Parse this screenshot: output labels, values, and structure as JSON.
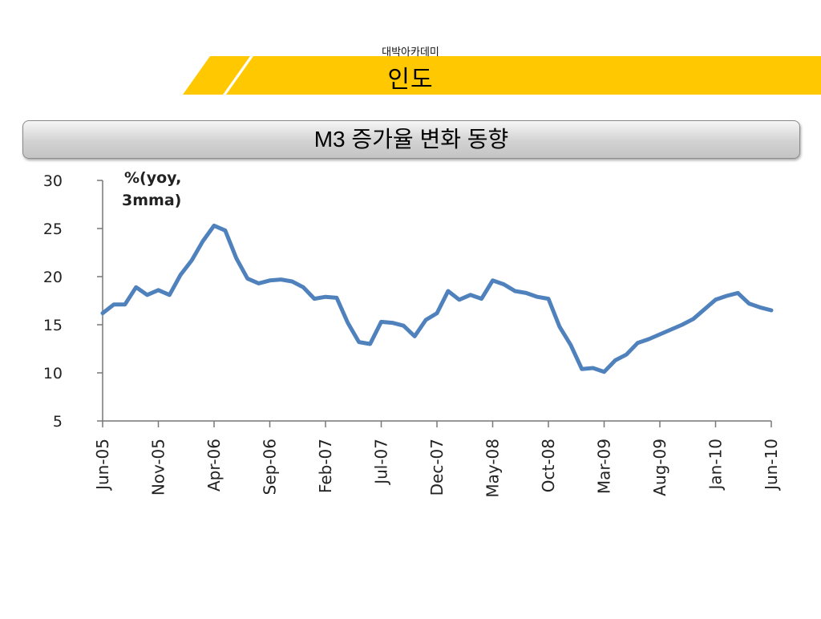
{
  "header": {
    "subtitle": "대박아카데미",
    "title": "인도"
  },
  "chart_header": {
    "title": "M3 증가율 변화 동향"
  },
  "colors": {
    "banner": "#FFC800",
    "line": "#4F81BD"
  },
  "chart_data": {
    "type": "line",
    "title": "M3 증가율 변화 동향",
    "unit_line1": "%(yoy,",
    "unit_line2": "3mma)",
    "ylim": [
      5,
      30
    ],
    "yticks": [
      5,
      10,
      15,
      20,
      25,
      30
    ],
    "x_tick_labels": [
      "Jun-05",
      "Nov-05",
      "Apr-06",
      "Sep-06",
      "Feb-07",
      "Jul-07",
      "Dec-07",
      "May-08",
      "Oct-08",
      "Mar-09",
      "Aug-09",
      "Jan-10",
      "Jun-10"
    ],
    "grid": false,
    "series": [
      {
        "values": [
          16.2,
          17.1,
          17.1,
          18.9,
          18.1,
          18.6,
          18.1,
          20.2,
          21.7,
          23.7,
          25.3,
          24.8,
          21.9,
          19.8,
          19.3,
          19.6,
          19.7,
          19.5,
          18.9,
          17.7,
          17.9,
          17.8,
          15.2,
          13.2,
          13.0,
          15.3,
          15.2,
          14.9,
          13.8,
          15.5,
          16.2,
          18.5,
          17.6,
          18.1,
          17.7,
          19.6,
          19.2,
          18.5,
          18.3,
          17.9,
          17.7,
          14.8,
          12.9,
          10.4,
          10.5,
          10.1,
          11.3,
          11.9,
          13.1,
          13.5,
          14.0,
          14.5,
          15.0,
          15.6,
          16.6,
          17.6,
          18.0,
          18.3,
          17.2,
          16.8,
          16.5
        ]
      }
    ]
  }
}
